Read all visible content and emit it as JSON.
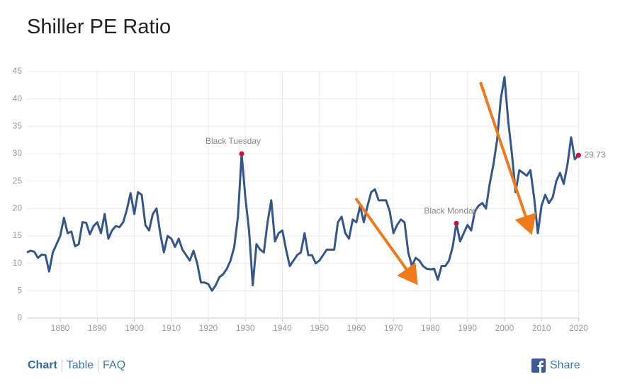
{
  "chart_data": {
    "type": "line",
    "title": "Shiller PE Ratio",
    "x": [
      1871,
      1872,
      1873,
      1874,
      1875,
      1876,
      1877,
      1878,
      1879,
      1880,
      1881,
      1882,
      1883,
      1884,
      1885,
      1886,
      1887,
      1888,
      1889,
      1890,
      1891,
      1892,
      1893,
      1894,
      1895,
      1896,
      1897,
      1898,
      1899,
      1900,
      1901,
      1902,
      1903,
      1904,
      1905,
      1906,
      1907,
      1908,
      1909,
      1910,
      1911,
      1912,
      1913,
      1914,
      1915,
      1916,
      1917,
      1918,
      1919,
      1920,
      1921,
      1922,
      1923,
      1924,
      1925,
      1926,
      1927,
      1928,
      1929,
      1930,
      1931,
      1932,
      1933,
      1934,
      1935,
      1936,
      1937,
      1938,
      1939,
      1940,
      1941,
      1942,
      1943,
      1944,
      1945,
      1946,
      1947,
      1948,
      1949,
      1950,
      1951,
      1952,
      1953,
      1954,
      1955,
      1956,
      1957,
      1958,
      1959,
      1960,
      1961,
      1962,
      1963,
      1964,
      1965,
      1966,
      1967,
      1968,
      1969,
      1970,
      1971,
      1972,
      1973,
      1974,
      1975,
      1976,
      1977,
      1978,
      1979,
      1980,
      1981,
      1982,
      1983,
      1984,
      1985,
      1986,
      1987,
      1988,
      1989,
      1990,
      1991,
      1992,
      1993,
      1994,
      1995,
      1996,
      1997,
      1998,
      1999,
      2000,
      2001,
      2002,
      2003,
      2004,
      2005,
      2006,
      2007,
      2008,
      2009,
      2010,
      2011,
      2012,
      2013,
      2014,
      2015,
      2016,
      2017,
      2018,
      2019,
      2020
    ],
    "series": [
      {
        "name": "Shiller PE Ratio",
        "color": "#34568b",
        "values": [
          12,
          12.3,
          12.1,
          11,
          11.6,
          11.5,
          8.5,
          12,
          13.5,
          15,
          18.3,
          15.5,
          15.8,
          13.1,
          13.5,
          17.5,
          17.4,
          15.3,
          16.8,
          17.5,
          15.5,
          19,
          14.5,
          16,
          16.8,
          16.6,
          17.5,
          19.8,
          22.8,
          19,
          23,
          22.5,
          17,
          16,
          19,
          20,
          15.5,
          12,
          15,
          14.5,
          13,
          14.5,
          12.5,
          11.5,
          10.5,
          12.3,
          10,
          6.5,
          6.5,
          6.2,
          5,
          6,
          7.5,
          8,
          9,
          10.5,
          13,
          18.5,
          30,
          22,
          16,
          6,
          13.5,
          12.5,
          12,
          17.5,
          21.5,
          14,
          15.5,
          16,
          12.5,
          9.5,
          10.5,
          11.5,
          12,
          15.5,
          11.5,
          11.5,
          10,
          10.5,
          11.5,
          12.5,
          12.5,
          12.5,
          17.5,
          18.5,
          15.5,
          14.5,
          18,
          17.5,
          20.5,
          17.5,
          20.5,
          23,
          23.5,
          21.5,
          21.5,
          21.5,
          19.5,
          15.5,
          17,
          18,
          17.5,
          12,
          9.5,
          11,
          10.5,
          9.5,
          9,
          8.9,
          9,
          7,
          9.5,
          9.5,
          10.5,
          13,
          17.3,
          14,
          15.5,
          17,
          16,
          19.5,
          20.5,
          21,
          20,
          24.5,
          28,
          32.5,
          40,
          44,
          36,
          30,
          23,
          27,
          26.5,
          26,
          27,
          22,
          15.5,
          20.5,
          22.5,
          21,
          22,
          25,
          26.5,
          24.5,
          28,
          33,
          29,
          29.73
        ]
      }
    ],
    "annotations": [
      {
        "label": "Black Tuesday",
        "x": 1929,
        "y": 30
      },
      {
        "label": "Black Monday",
        "x": 1987,
        "y": 17.3
      }
    ],
    "xlim": [
      1871,
      2020.3
    ],
    "xticks": [
      1880,
      1890,
      1900,
      1910,
      1920,
      1930,
      1940,
      1950,
      1960,
      1970,
      1980,
      1990,
      2000,
      2010,
      2020
    ],
    "ylim": [
      0,
      45
    ],
    "yticks": [
      0,
      5,
      10,
      15,
      20,
      25,
      30,
      35,
      40,
      45
    ],
    "grid": true,
    "marker_color": "#d0103a",
    "arrow_color": "#f07a1a"
  },
  "nav": {
    "links": [
      "Chart",
      "Table",
      "FAQ"
    ],
    "share": "Share"
  }
}
